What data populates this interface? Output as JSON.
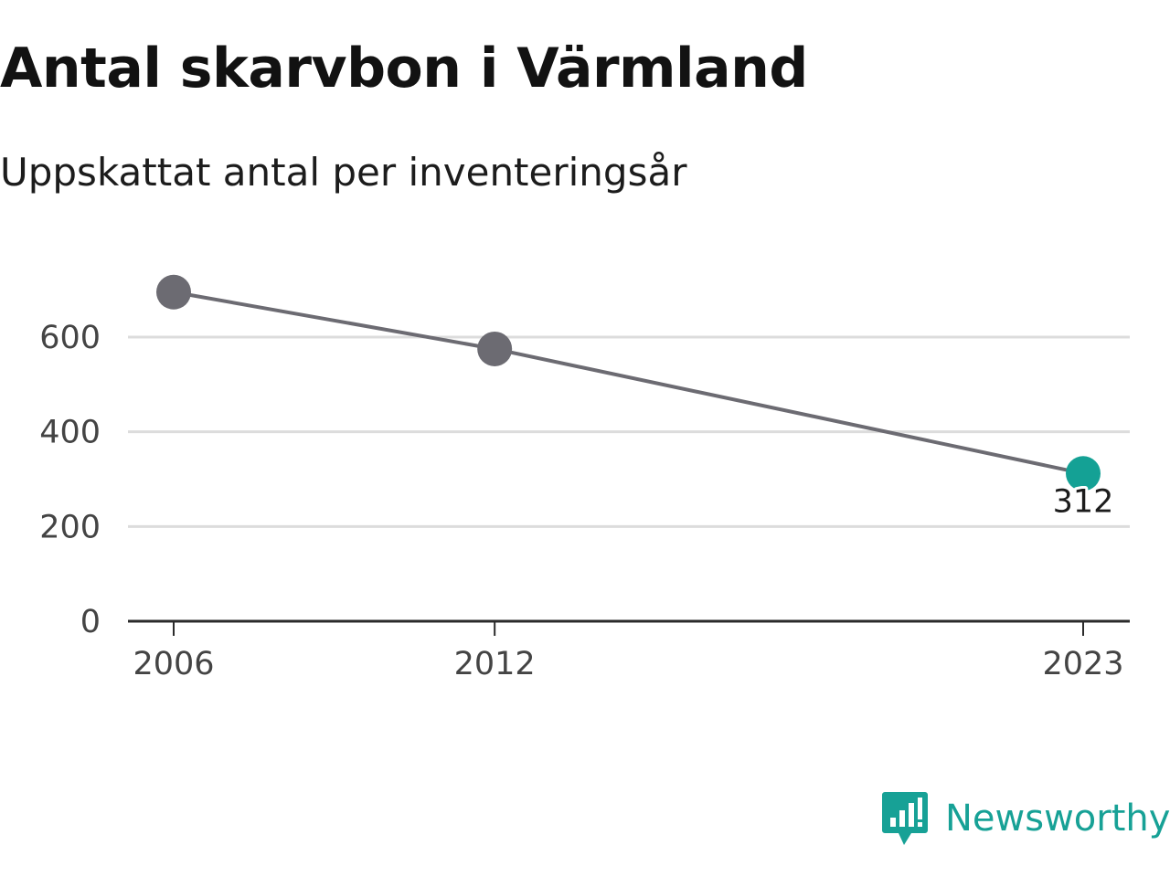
{
  "header": {
    "title": "Antal skarvbon i Värmland",
    "subtitle": "Uppskattat antal per inventeringsår"
  },
  "chart_data": {
    "type": "line",
    "title": "Antal skarvbon i Värmland",
    "subtitle": "Uppskattat antal per inventeringsår",
    "xlabel": "",
    "ylabel": "",
    "x": [
      2006,
      2012,
      2023
    ],
    "series": [
      {
        "values": [
          695,
          575,
          312
        ]
      }
    ],
    "data_labels": [
      null,
      null,
      "312"
    ],
    "xlim": [
      2006,
      2023
    ],
    "ylim": [
      0,
      600
    ],
    "yticks": [
      0,
      200,
      400,
      600
    ],
    "xticks": [
      2006,
      2012,
      2023
    ],
    "grid": true,
    "legend": "none",
    "colors": {
      "line": "#6c6b72",
      "point": "#6c6b72",
      "highlight": "#14a195",
      "grid": "#dcdcdc",
      "axis": "#2b2b2b"
    }
  },
  "brand": {
    "name": "Newsworthy",
    "logo_icon": "bar-chart-speech-bubble-icon",
    "color": "#17a196"
  }
}
